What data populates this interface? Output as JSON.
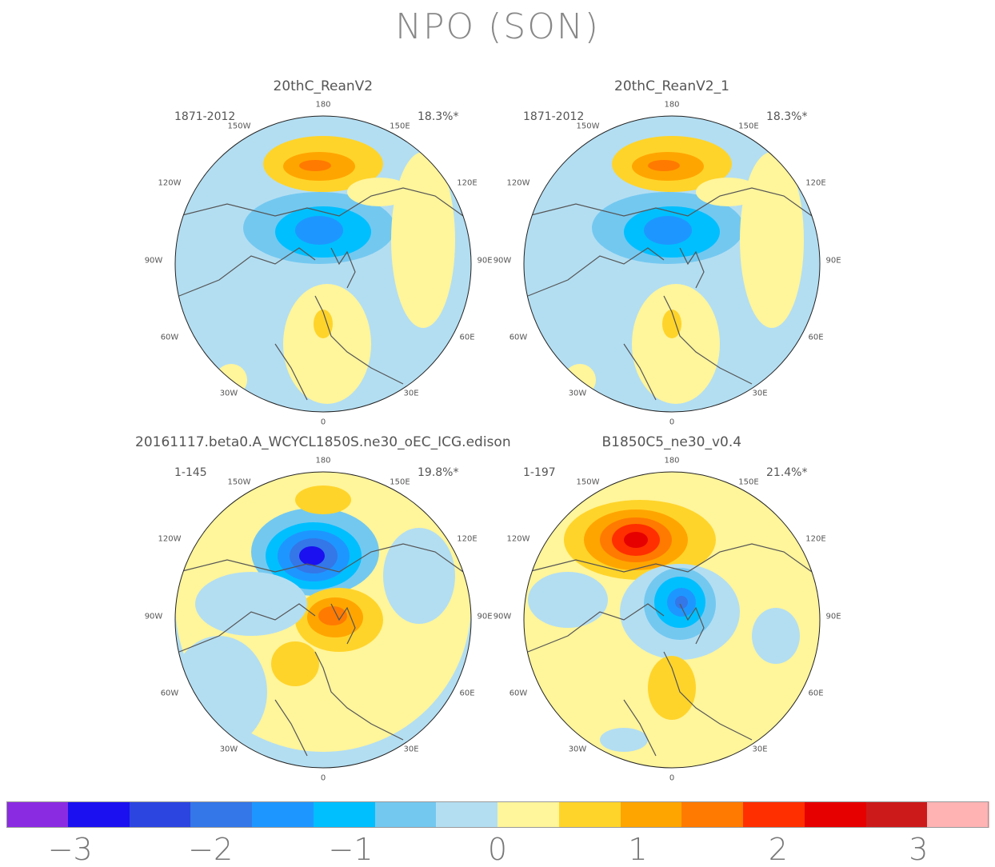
{
  "title": "NPO (SON)",
  "panels": [
    {
      "title": "20thC_ReanV2",
      "years": "1871-2012",
      "percent": "18.3%*"
    },
    {
      "title": "20thC_ReanV2_1",
      "years": "1871-2012",
      "percent": "18.3%*"
    },
    {
      "title": "20161117.beta0.A_WCYCL1850S.ne30_oEC_ICG.edison",
      "years": "1-145",
      "percent": "19.8%*"
    },
    {
      "title": "B1850C5_ne30_v0.4",
      "years": "1-197",
      "percent": "21.4%*"
    }
  ],
  "longitude_labels": {
    "top": "180",
    "bottom": "0",
    "left": [
      "150W",
      "120W",
      "90W",
      "60W",
      "30W"
    ],
    "right": [
      "150E",
      "120E",
      "90E",
      "60E",
      "30E"
    ]
  },
  "chart_data": {
    "type": "heatmap",
    "title": "NPO (SON)",
    "projection": "north polar stereographic",
    "colorbar": {
      "colors": [
        "#8a2be2",
        "#1a10f0",
        "#2c44e0",
        "#3377e8",
        "#1e96ff",
        "#00bfff",
        "#73c8f0",
        "#b3def2",
        "#fff59b",
        "#ffd42a",
        "#ffa500",
        "#ff7a00",
        "#ff2f00",
        "#e60000",
        "#cc1a1a",
        "#ffb3b3"
      ],
      "bounds": [
        -3.5,
        3.5
      ],
      "tick_values": [
        -3,
        -2,
        -1,
        0,
        1,
        2,
        3
      ],
      "tick_labels": [
        "−3",
        "−2",
        "−1",
        "0",
        "1",
        "2",
        "3"
      ]
    }
  }
}
